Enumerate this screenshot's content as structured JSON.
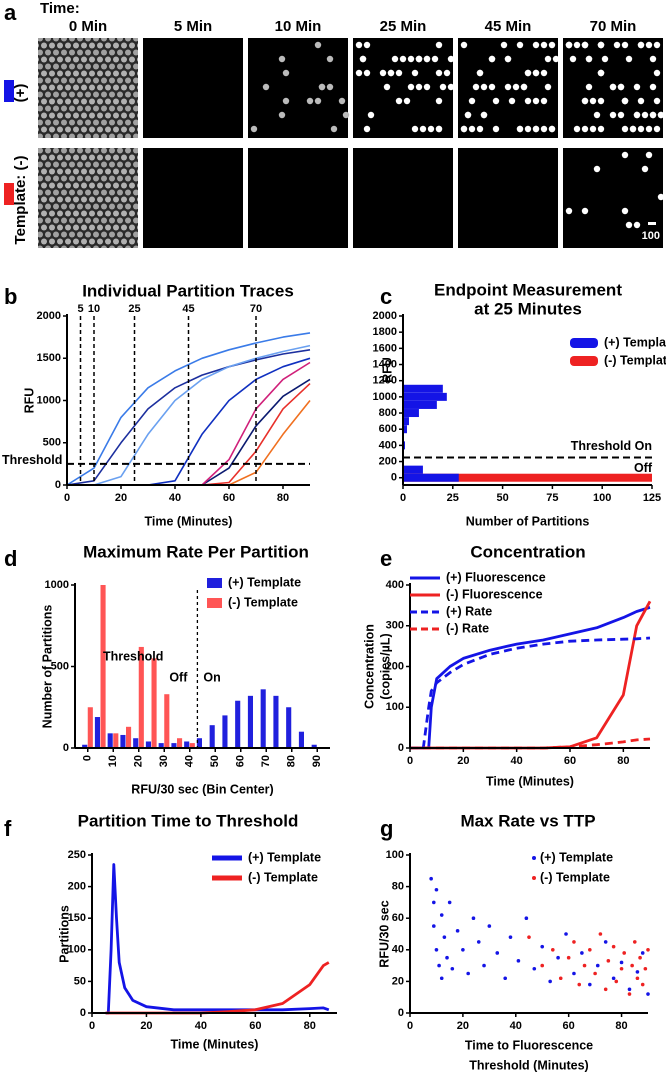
{
  "panel_a": {
    "panel_label": "a",
    "time_label": "Time:",
    "columns": [
      "0 Min",
      "5 Min",
      "10 Min",
      "25 Min",
      "45 Min",
      "70 Min"
    ],
    "rows": [
      "(+)",
      "Template: (-)"
    ],
    "scale_label": "100"
  },
  "chart_data": [
    {
      "panel_label": "b",
      "type": "line",
      "title": "Individual Partition Traces",
      "xlabel": "Time (Minutes)",
      "ylabel": "RFU",
      "x": [
        0,
        10,
        20,
        30,
        40,
        50,
        60,
        70,
        80,
        90
      ],
      "series": [
        {
          "color": "#3a7be8",
          "values": [
            0,
            200,
            800,
            1150,
            1350,
            1500,
            1600,
            1680,
            1750,
            1800
          ]
        },
        {
          "color": "#1c2f9e",
          "values": [
            0,
            50,
            500,
            900,
            1150,
            1300,
            1400,
            1480,
            1550,
            1600
          ]
        },
        {
          "color": "#6aa0f0",
          "values": [
            0,
            0,
            100,
            600,
            1000,
            1250,
            1400,
            1500,
            1580,
            1650
          ]
        },
        {
          "color": "#1030c0",
          "values": [
            0,
            0,
            0,
            0,
            50,
            600,
            1000,
            1250,
            1400,
            1500
          ]
        },
        {
          "color": "#0b1a70",
          "values": [
            0,
            0,
            0,
            0,
            0,
            0,
            200,
            700,
            1050,
            1250
          ]
        },
        {
          "color": "#e8302a",
          "values": [
            0,
            0,
            0,
            0,
            0,
            0,
            30,
            400,
            900,
            1200
          ]
        },
        {
          "color": "#f07020",
          "values": [
            0,
            0,
            0,
            0,
            0,
            0,
            0,
            150,
            600,
            1000
          ]
        },
        {
          "color": "#d0207a",
          "values": [
            0,
            0,
            0,
            0,
            0,
            0,
            300,
            900,
            1250,
            1450
          ]
        }
      ],
      "xlim": [
        0,
        90
      ],
      "xticks": [
        0,
        20,
        40,
        60,
        80
      ],
      "ylim": [
        0,
        2000
      ],
      "yticks": [
        0,
        500,
        1000,
        1500,
        2000
      ],
      "markers": [
        5,
        10,
        25,
        45,
        70
      ],
      "threshold": 250,
      "threshold_labels": [
        "Threshold"
      ]
    },
    {
      "panel_label": "c",
      "type": "barh",
      "title": [
        "Endpoint Measurement",
        "at 25 Minutes"
      ],
      "xlabel": "Number of Partitions",
      "ylabel": "RFU",
      "series": [
        {
          "name": "(+) Template",
          "color": "#1414e6",
          "y": [
            0,
            100,
            400,
            600,
            700,
            800,
            900,
            1000,
            1100
          ],
          "values": [
            28,
            10,
            1,
            2,
            3,
            8,
            17,
            22,
            20
          ]
        },
        {
          "name": "(-) Template",
          "color": "#ee2222",
          "y": [
            0
          ],
          "values": [
            125
          ]
        }
      ],
      "xlim": [
        0,
        125
      ],
      "xticks": [
        0,
        25,
        50,
        75,
        100,
        125
      ],
      "ylim": [
        -90,
        2000
      ],
      "yticks": [
        0,
        200,
        400,
        600,
        800,
        1000,
        1200,
        1400,
        1600,
        1800,
        2000
      ],
      "threshold": 250,
      "threshold_labels": [
        "Threshold On",
        "Off"
      ]
    },
    {
      "panel_label": "d",
      "type": "bar",
      "title": "Maximum Rate Per Partition",
      "xlabel": "RFU/30 sec  (Bin Center)",
      "ylabel": "Number of Partitions",
      "x": [
        0,
        5,
        10,
        15,
        20,
        25,
        30,
        35,
        40,
        45,
        50,
        55,
        60,
        65,
        70,
        75,
        80,
        85,
        90
      ],
      "series": [
        {
          "name": "(+) Template",
          "color": "#2020dd",
          "values": [
            20,
            190,
            90,
            80,
            60,
            40,
            30,
            30,
            40,
            60,
            140,
            200,
            290,
            320,
            360,
            320,
            250,
            100,
            20
          ]
        },
        {
          "name": "(-) Template",
          "color": "#ff5555",
          "values": [
            250,
            1000,
            90,
            130,
            620,
            550,
            330,
            60,
            30,
            0,
            0,
            0,
            0,
            0,
            0,
            0,
            0,
            0,
            0
          ]
        }
      ],
      "xlim": [
        -5,
        95
      ],
      "xticks": [
        0,
        10,
        20,
        30,
        40,
        50,
        60,
        70,
        80,
        90
      ],
      "ylim": [
        0,
        1000
      ],
      "yticks": [
        0,
        500,
        1000
      ],
      "threshold": 43,
      "threshold_labels": [
        "Threshold",
        "Off",
        "On"
      ]
    },
    {
      "panel_label": "e",
      "type": "line",
      "title": "Concentration",
      "xlabel": "Time  (Minutes)",
      "ylabel": [
        "Concentration",
        "(copies/µL)"
      ],
      "x": [
        0,
        5,
        7,
        8,
        10,
        15,
        20,
        30,
        40,
        50,
        60,
        70,
        80,
        85,
        90
      ],
      "series": [
        {
          "name": "(+) Fluorescence",
          "color": "#1414e6",
          "values": [
            0,
            0,
            0,
            100,
            170,
            200,
            220,
            240,
            255,
            265,
            280,
            295,
            320,
            335,
            345
          ]
        },
        {
          "name": "(-) Fluorescence",
          "color": "#ee2222",
          "values": [
            0,
            0,
            0,
            0,
            0,
            0,
            0,
            0,
            0,
            0,
            3,
            25,
            130,
            300,
            360
          ]
        },
        {
          "name": "(+) Rate",
          "color": "#1414e6",
          "dashed": true,
          "values": [
            0,
            0,
            100,
            140,
            160,
            185,
            205,
            230,
            245,
            255,
            262,
            265,
            267,
            268,
            270
          ]
        },
        {
          "name": "(-) Rate",
          "color": "#ee2222",
          "dashed": true,
          "values": [
            0,
            0,
            0,
            0,
            0,
            0,
            0,
            0,
            0,
            0,
            3,
            8,
            15,
            20,
            22
          ]
        }
      ],
      "xlim": [
        0,
        90
      ],
      "xticks": [
        0,
        20,
        40,
        60,
        80
      ],
      "ylim": [
        0,
        400
      ],
      "yticks": [
        0,
        100,
        200,
        300,
        400
      ]
    },
    {
      "panel_label": "f",
      "type": "line",
      "title": "Partition Time to Threshold",
      "xlabel": "Time (Minutes)",
      "ylabel": "Partitions",
      "x": [
        5,
        6,
        7,
        8,
        9,
        10,
        12,
        15,
        20,
        30,
        40,
        50,
        60,
        70,
        80,
        85,
        87
      ],
      "series": [
        {
          "name": "(+) Template",
          "color": "#1414e6",
          "values": [
            0,
            0,
            100,
            235,
            150,
            80,
            40,
            20,
            10,
            5,
            5,
            5,
            5,
            5,
            7,
            8,
            5
          ]
        },
        {
          "name": "(-) Template",
          "color": "#ee2222",
          "values": [
            0,
            0,
            0,
            0,
            0,
            0,
            0,
            0,
            0,
            0,
            0,
            2,
            5,
            15,
            45,
            75,
            80
          ]
        }
      ],
      "xlim": [
        0,
        90
      ],
      "xticks": [
        0,
        20,
        40,
        60,
        80
      ],
      "ylim": [
        0,
        250
      ],
      "yticks": [
        0,
        50,
        100,
        150,
        200,
        250
      ]
    },
    {
      "panel_label": "g",
      "type": "scatter",
      "title": "Max Rate vs TTP",
      "xlabel": [
        "Time to Fluorescence",
        "Threshold (Minutes)"
      ],
      "ylabel": "RFU/30 sec",
      "series": [
        {
          "name": "(+) Template",
          "color": "#1414e6",
          "x": [
            8,
            9,
            9,
            10,
            10,
            11,
            12,
            12,
            13,
            14,
            15,
            16,
            18,
            20,
            22,
            24,
            26,
            28,
            30,
            33,
            36,
            38,
            41,
            44,
            47,
            50,
            53,
            56,
            59,
            62,
            65,
            68,
            71,
            74,
            77,
            80,
            83,
            86,
            88,
            90
          ],
          "values": [
            85,
            70,
            55,
            40,
            78,
            30,
            62,
            22,
            48,
            35,
            70,
            28,
            52,
            40,
            25,
            60,
            45,
            30,
            55,
            38,
            22,
            48,
            33,
            60,
            28,
            42,
            20,
            35,
            50,
            25,
            38,
            18,
            30,
            45,
            22,
            32,
            15,
            26,
            38,
            12
          ]
        },
        {
          "name": "(-) Template",
          "color": "#ee2222",
          "x": [
            45,
            50,
            54,
            57,
            60,
            62,
            64,
            66,
            68,
            70,
            72,
            74,
            75,
            77,
            78,
            80,
            81,
            83,
            84,
            85,
            86,
            87,
            88,
            89,
            90
          ],
          "values": [
            48,
            30,
            40,
            22,
            35,
            45,
            18,
            30,
            40,
            25,
            50,
            15,
            33,
            42,
            20,
            28,
            38,
            12,
            30,
            45,
            22,
            35,
            18,
            28,
            40
          ]
        }
      ],
      "xlim": [
        0,
        90
      ],
      "xticks": [
        0,
        20,
        40,
        60,
        80
      ],
      "ylim": [
        0,
        100
      ],
      "yticks": [
        0,
        20,
        40,
        60,
        80,
        100
      ]
    }
  ]
}
